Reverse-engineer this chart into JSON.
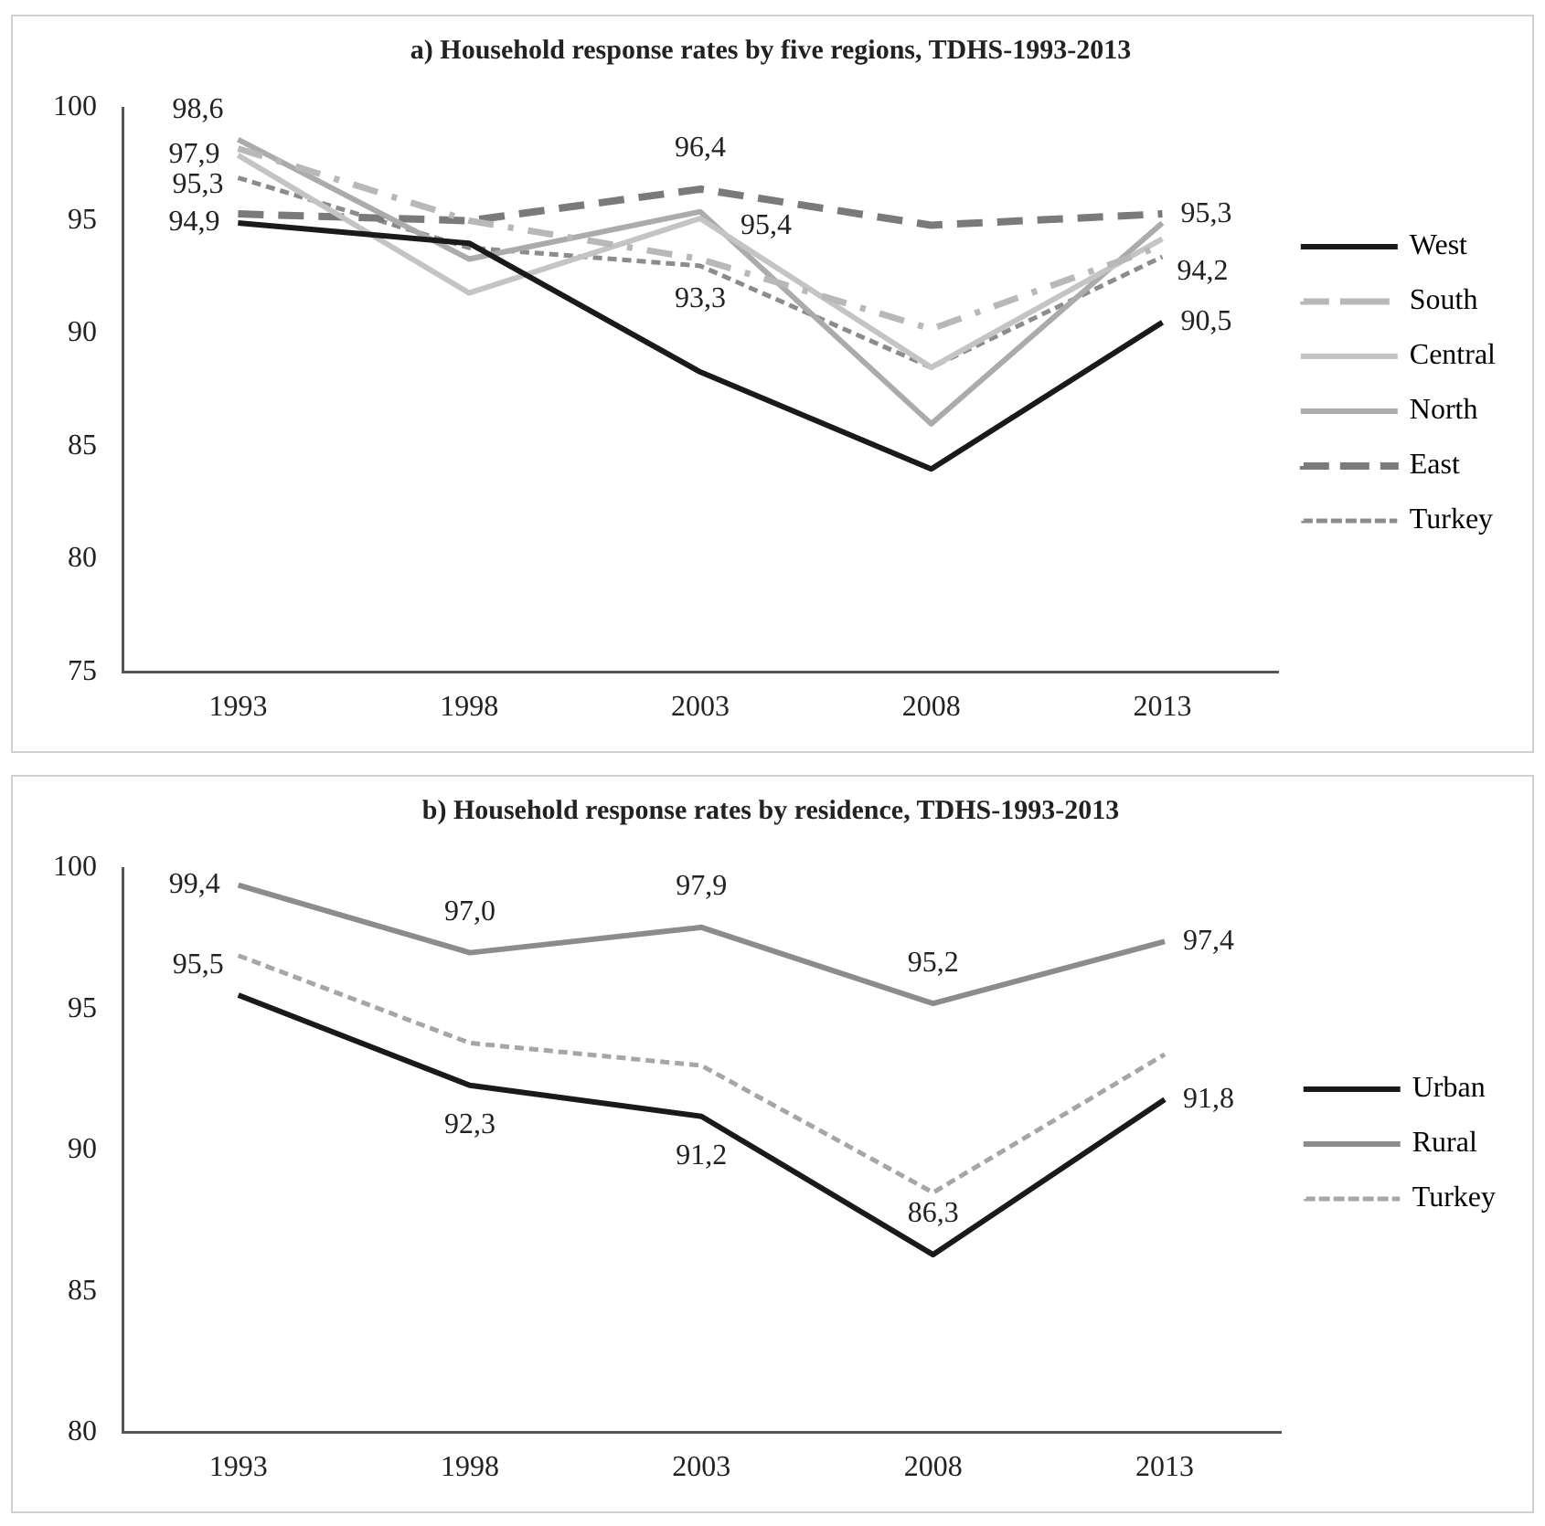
{
  "chart_data": [
    {
      "type": "line",
      "title": "a) Household response rates by five regions, TDHS-1993-2013",
      "categories": [
        "1993",
        "1998",
        "2003",
        "2008",
        "2013"
      ],
      "ylim": [
        75,
        100
      ],
      "yticks": [
        75,
        80,
        85,
        90,
        95,
        100
      ],
      "grid": false,
      "legend": "right",
      "marker": "none",
      "series": [
        {
          "name": "West",
          "color": "#1a1a1a",
          "line_style": "solid",
          "values": [
            94.9,
            94.0,
            88.3,
            84.0,
            90.5
          ],
          "value_labels": [
            "94,9",
            null,
            null,
            null,
            "90,5"
          ]
        },
        {
          "name": "South",
          "color": "#b8b8b8",
          "line_style": "dashdot",
          "values": [
            98.2,
            95.0,
            93.3,
            90.2,
            93.9
          ],
          "value_labels": [
            null,
            null,
            "93,3",
            null,
            null
          ]
        },
        {
          "name": "Central",
          "color": "#c4c4c4",
          "line_style": "solid",
          "values": [
            97.9,
            91.8,
            95.1,
            88.5,
            94.2
          ],
          "value_labels": [
            "97,9",
            null,
            null,
            null,
            "94,2"
          ]
        },
        {
          "name": "North",
          "color": "#ababab",
          "line_style": "solid",
          "values": [
            98.6,
            93.3,
            95.4,
            86.0,
            94.9
          ],
          "value_labels": [
            "98,6",
            null,
            "95,4",
            null,
            null
          ]
        },
        {
          "name": "East",
          "color": "#7a7a7a",
          "line_style": "dashed",
          "values": [
            95.3,
            95.0,
            96.4,
            94.8,
            95.3
          ],
          "value_labels": [
            "95,3",
            null,
            "96,4",
            null,
            "95,3"
          ]
        },
        {
          "name": "Turkey",
          "color": "#8c8c8c",
          "line_style": "dotted",
          "values": [
            96.9,
            93.8,
            93.0,
            88.5,
            93.4
          ]
        }
      ]
    },
    {
      "type": "line",
      "title": "b) Household response rates by residence, TDHS-1993-2013",
      "categories": [
        "1993",
        "1998",
        "2003",
        "2008",
        "2013"
      ],
      "ylim": [
        80,
        100
      ],
      "yticks": [
        80,
        85,
        90,
        95,
        100
      ],
      "grid": false,
      "legend": "right",
      "marker": "none",
      "series": [
        {
          "name": "Urban",
          "color": "#1a1a1a",
          "line_style": "solid",
          "values": [
            95.5,
            92.3,
            91.2,
            86.3,
            91.8
          ],
          "value_labels": [
            "95,5",
            "92,3",
            "91,2",
            "86,3",
            "91,8"
          ]
        },
        {
          "name": "Rural",
          "color": "#8c8c8c",
          "line_style": "solid",
          "values": [
            99.4,
            97.0,
            97.9,
            95.2,
            97.4
          ],
          "value_labels": [
            "99,4",
            "97,0",
            "97,9",
            "95,2",
            "97,4"
          ]
        },
        {
          "name": "Turkey",
          "color": "#a6a6a6",
          "line_style": "dotted",
          "values": [
            96.9,
            93.8,
            93.0,
            88.5,
            93.4
          ]
        }
      ]
    }
  ]
}
